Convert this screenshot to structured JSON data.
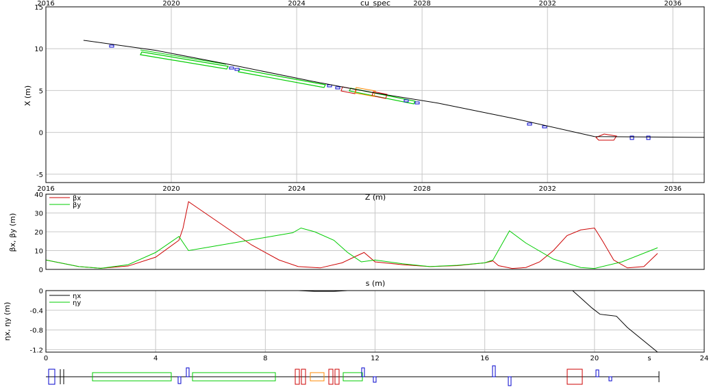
{
  "colors": {
    "beta_x": "#cc0000",
    "beta_y": "#00cc00",
    "eta_x": "#000000",
    "eta_y": "#00cc00",
    "bend": "#00cc00",
    "quad": "#0000cc",
    "dipole_red": "#cc0000",
    "orange": "#ff8800",
    "grid": "#c8c8c8"
  },
  "chart_data": [
    {
      "type": "line",
      "title": "cu_spec",
      "xlabel": "Z (m)",
      "ylabel": "X (m)",
      "xlim": [
        2016,
        2037
      ],
      "ylim": [
        -6,
        15
      ],
      "xticks": [
        2016,
        2020,
        2024,
        2028,
        2032,
        2036
      ],
      "yticks": [
        -5,
        0,
        5,
        10,
        15
      ],
      "grid": true,
      "series": [
        {
          "x": [
            2017.2,
            2019.5,
            2022.0,
            2024.5,
            2026.5,
            2028.5,
            2031.0,
            2033.5,
            2037.0
          ],
          "y": [
            11.0,
            9.8,
            8.0,
            6.1,
            4.7,
            3.5,
            1.6,
            -0.5,
            -0.6
          ]
        }
      ]
    },
    {
      "type": "line",
      "xlabel": "s (m)",
      "ylabel": "βx, βy (m)",
      "xlim": [
        0,
        24
      ],
      "ylim": [
        0,
        40
      ],
      "yticks": [
        0,
        10,
        20,
        30,
        40
      ],
      "grid": true,
      "legend": "top-left",
      "series": [
        {
          "name": "βx",
          "x": [
            0,
            1.2,
            2.0,
            3.0,
            4.0,
            4.85,
            5.0,
            5.2,
            5.5,
            6.5,
            7.5,
            8.5,
            9.2,
            10.0,
            10.8,
            11.3,
            11.6,
            12.0,
            13.0,
            14.0,
            15.0,
            16.0,
            16.3,
            16.5,
            17.0,
            17.5,
            18.0,
            18.5,
            19.0,
            19.5,
            20.0,
            20.3,
            20.7,
            21.2,
            21.8,
            22.3
          ],
          "y": [
            5,
            1.5,
            0.6,
            1.8,
            6.5,
            15.5,
            22,
            36,
            33,
            23,
            13,
            5,
            1.5,
            0.8,
            3.5,
            7,
            9,
            4,
            2.5,
            1.5,
            2,
            3.5,
            4.5,
            2,
            0.5,
            1,
            4,
            10,
            18,
            21,
            22,
            15,
            5,
            0.8,
            1.5,
            8.5
          ]
        },
        {
          "name": "βy",
          "x": [
            0,
            1.2,
            2.0,
            3.0,
            4.0,
            4.85,
            5.2,
            6.0,
            7.0,
            8.0,
            9.0,
            9.3,
            9.8,
            10.5,
            11.0,
            11.5,
            12.0,
            13.0,
            14.0,
            15.0,
            16.0,
            16.3,
            16.9,
            17.5,
            18.5,
            19.5,
            20.0,
            21.0,
            22.3
          ],
          "y": [
            5,
            1.5,
            0.6,
            2.5,
            9,
            17.5,
            10,
            12,
            14.5,
            17,
            19.5,
            22,
            20,
            15.5,
            9,
            4,
            5,
            3,
            1.5,
            2.2,
            3.5,
            5,
            20.5,
            14,
            5.5,
            1,
            0.5,
            4,
            11.5
          ]
        }
      ]
    },
    {
      "type": "line",
      "xlabel": "s",
      "ylabel": "ηx, ηy (m)",
      "xlim": [
        0,
        24
      ],
      "ylim": [
        -1.25,
        0
      ],
      "xticks": [
        0,
        4,
        8,
        12,
        16,
        20,
        24
      ],
      "yticks": [
        0,
        -0.4,
        -0.8,
        -1.2
      ],
      "grid": true,
      "legend": "top-left",
      "series": [
        {
          "name": "ηx",
          "x": [
            0,
            9.2,
            9.8,
            10.5,
            11.0,
            19.2,
            19.5,
            19.9,
            20.2,
            20.8,
            21.2,
            22.3
          ],
          "y": [
            0,
            0,
            -0.015,
            -0.015,
            0,
            0,
            -0.15,
            -0.35,
            -0.48,
            -0.52,
            -0.75,
            -1.25
          ]
        },
        {
          "name": "ηy",
          "x": [
            0,
            22.3
          ],
          "y": [
            0,
            0
          ]
        }
      ]
    }
  ]
}
